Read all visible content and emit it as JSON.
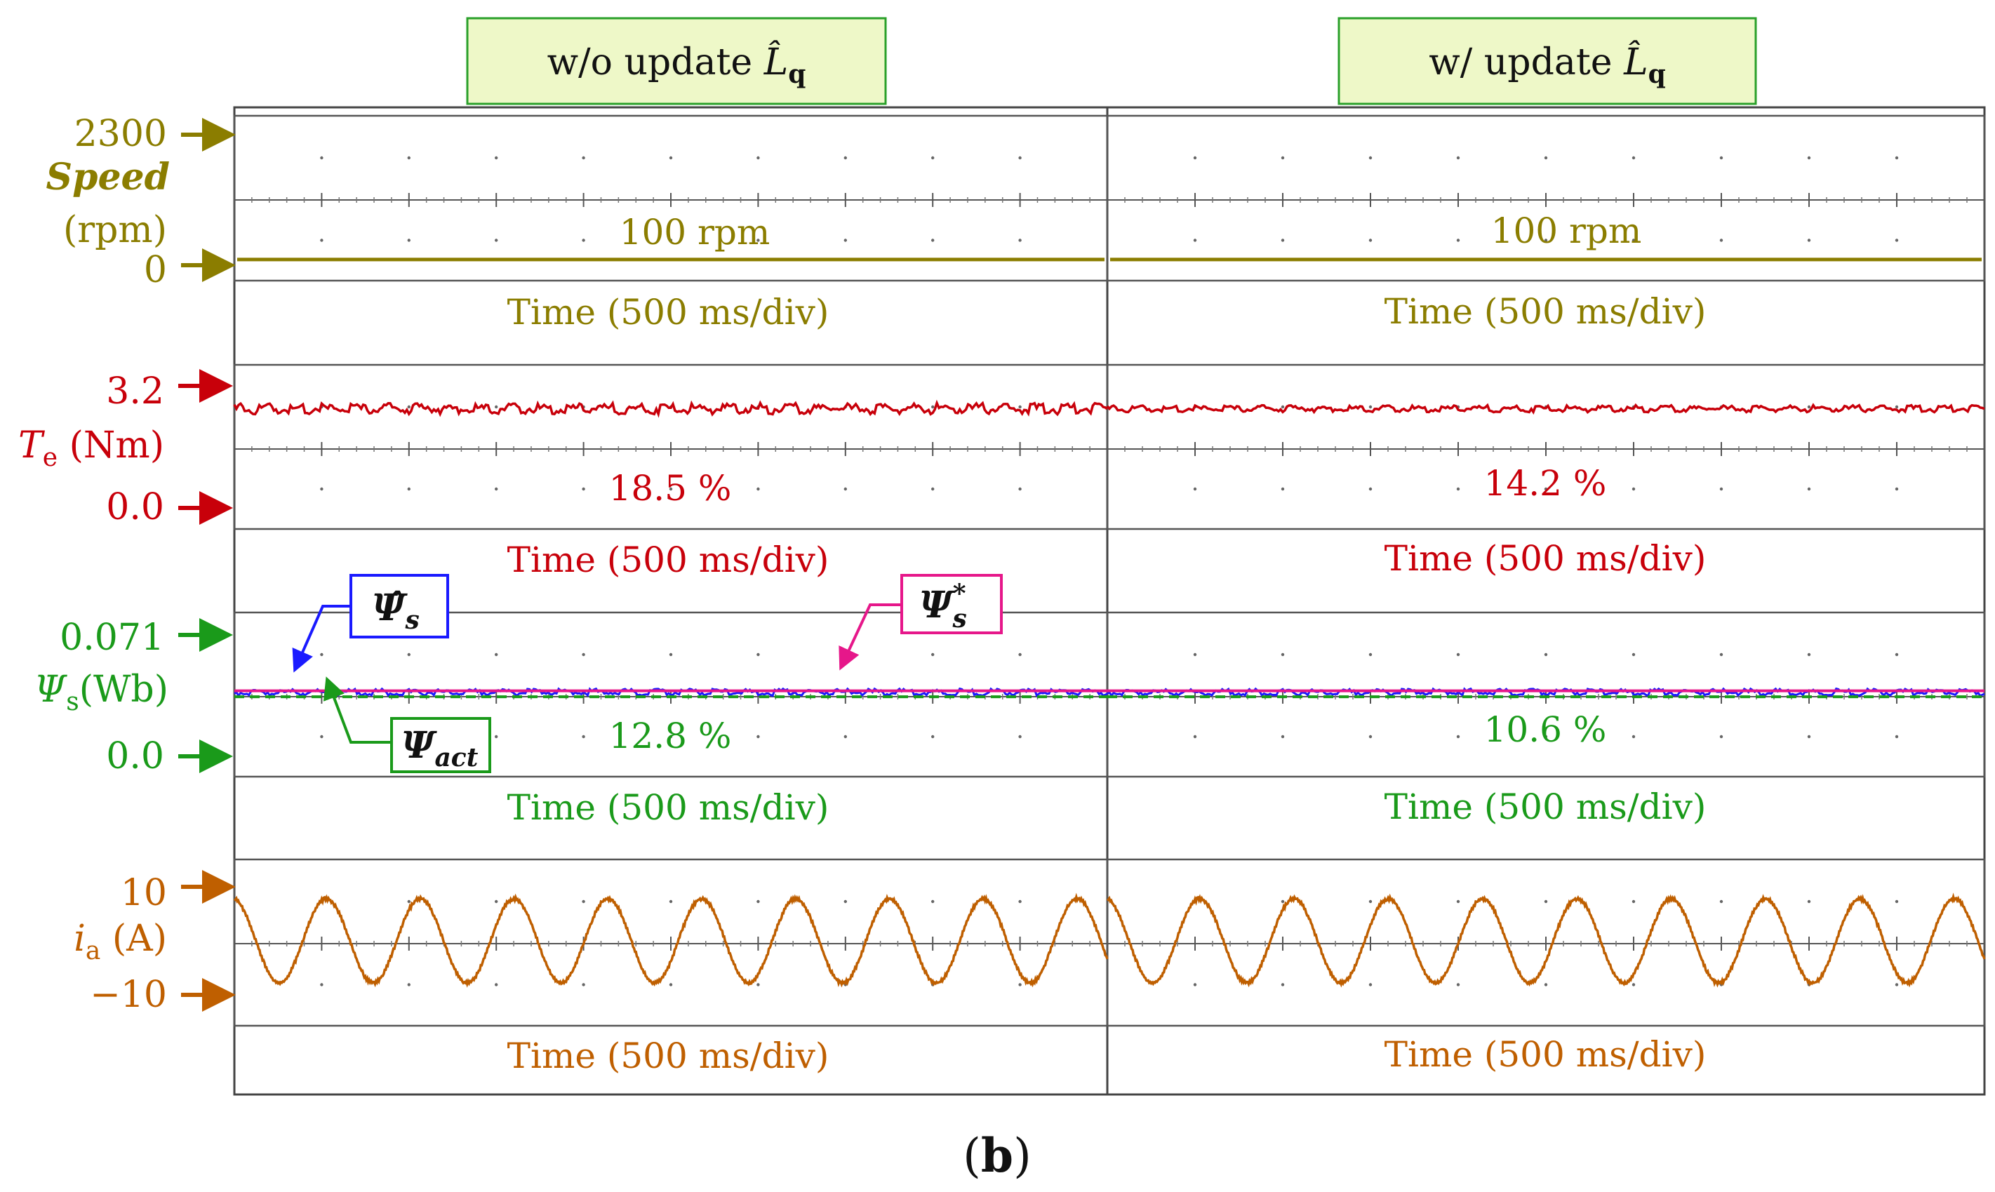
{
  "caption": "(b)",
  "colors": {
    "speed": "#8b7d00",
    "torque": "#c8000a",
    "flux": "#1a9a1a",
    "flux_est": "#1a1aff",
    "flux_ref": "#e6178a",
    "current": "#bf5f00",
    "panel_fill": "#eef8c8",
    "panel_border": "#2aa02a",
    "grid": "#555555"
  },
  "columns": [
    {
      "header_text": "w/o update ",
      "header_symbol": "L̂",
      "header_sub": "q"
    },
    {
      "header_text": "w/ update ",
      "header_symbol": "L̂",
      "header_sub": "q"
    }
  ],
  "time_axis_label": "Time (500 ms/div)",
  "channels": {
    "speed": {
      "title": "Speed",
      "unit": "(rpm)",
      "top_tick": "2300",
      "bottom_tick": "0",
      "annotations": [
        "100 rpm",
        "100 rpm"
      ]
    },
    "torque": {
      "symbol": "T",
      "subscript": "e",
      "unit": " (Nm)",
      "top_tick": "3.2",
      "bottom_tick": "0.0",
      "annotations": [
        "18.5 %",
        "14.2 %"
      ]
    },
    "flux": {
      "symbol": "Ψ",
      "subscript": "s",
      "unit": "(Wb)",
      "top_tick": "0.071",
      "bottom_tick": "0.0",
      "annotations": [
        "12.8 %",
        "10.6 %"
      ],
      "legend": {
        "estimated": {
          "symbol": "Ψ̂",
          "subscript": "s"
        },
        "reference": {
          "symbol": "Ψ",
          "subscript": "s",
          "superscript": "*"
        },
        "actual": {
          "symbol": "Ψ",
          "subscript": "act"
        }
      }
    },
    "current": {
      "symbol": "i",
      "subscript": "a",
      "unit": " (A)",
      "top_tick": "10",
      "bottom_tick": "−10"
    }
  },
  "chart_data": {
    "type": "line",
    "title": "",
    "xlabel": "Time (500 ms/div)",
    "panels": [
      "w/o update L̂q",
      "w/ update L̂q"
    ],
    "x_units": "time divisions (500 ms/div)",
    "x_range": [
      0,
      5
    ],
    "series": [
      {
        "name": "Speed",
        "unit": "rpm",
        "ylim": [
          0,
          2300
        ],
        "values": [
          100,
          100
        ],
        "ripple": [
          0,
          0
        ]
      },
      {
        "name": "Te",
        "unit": "Nm",
        "ylim": [
          0,
          3.2
        ],
        "values": [
          2.6,
          2.6
        ],
        "ripple_percent": [
          18.5,
          14.2
        ]
      },
      {
        "name": "Psi_s_estimated",
        "unit": "Wb",
        "ylim": [
          0,
          0.071
        ],
        "values": [
          0.0375,
          0.0375
        ]
      },
      {
        "name": "Psi_s_reference",
        "unit": "Wb",
        "ylim": [
          0,
          0.071
        ],
        "values": [
          0.0375,
          0.0375
        ]
      },
      {
        "name": "Psi_act",
        "unit": "Wb",
        "ylim": [
          0,
          0.071
        ],
        "values": [
          0.0365,
          0.0365
        ],
        "ripple_percent": [
          12.8,
          10.6
        ]
      },
      {
        "name": "ia",
        "unit": "A",
        "ylim": [
          -10,
          10
        ],
        "amplitude": [
          7.8,
          7.8
        ],
        "cycles_per_panel": [
          9.3,
          9.3
        ]
      }
    ]
  }
}
